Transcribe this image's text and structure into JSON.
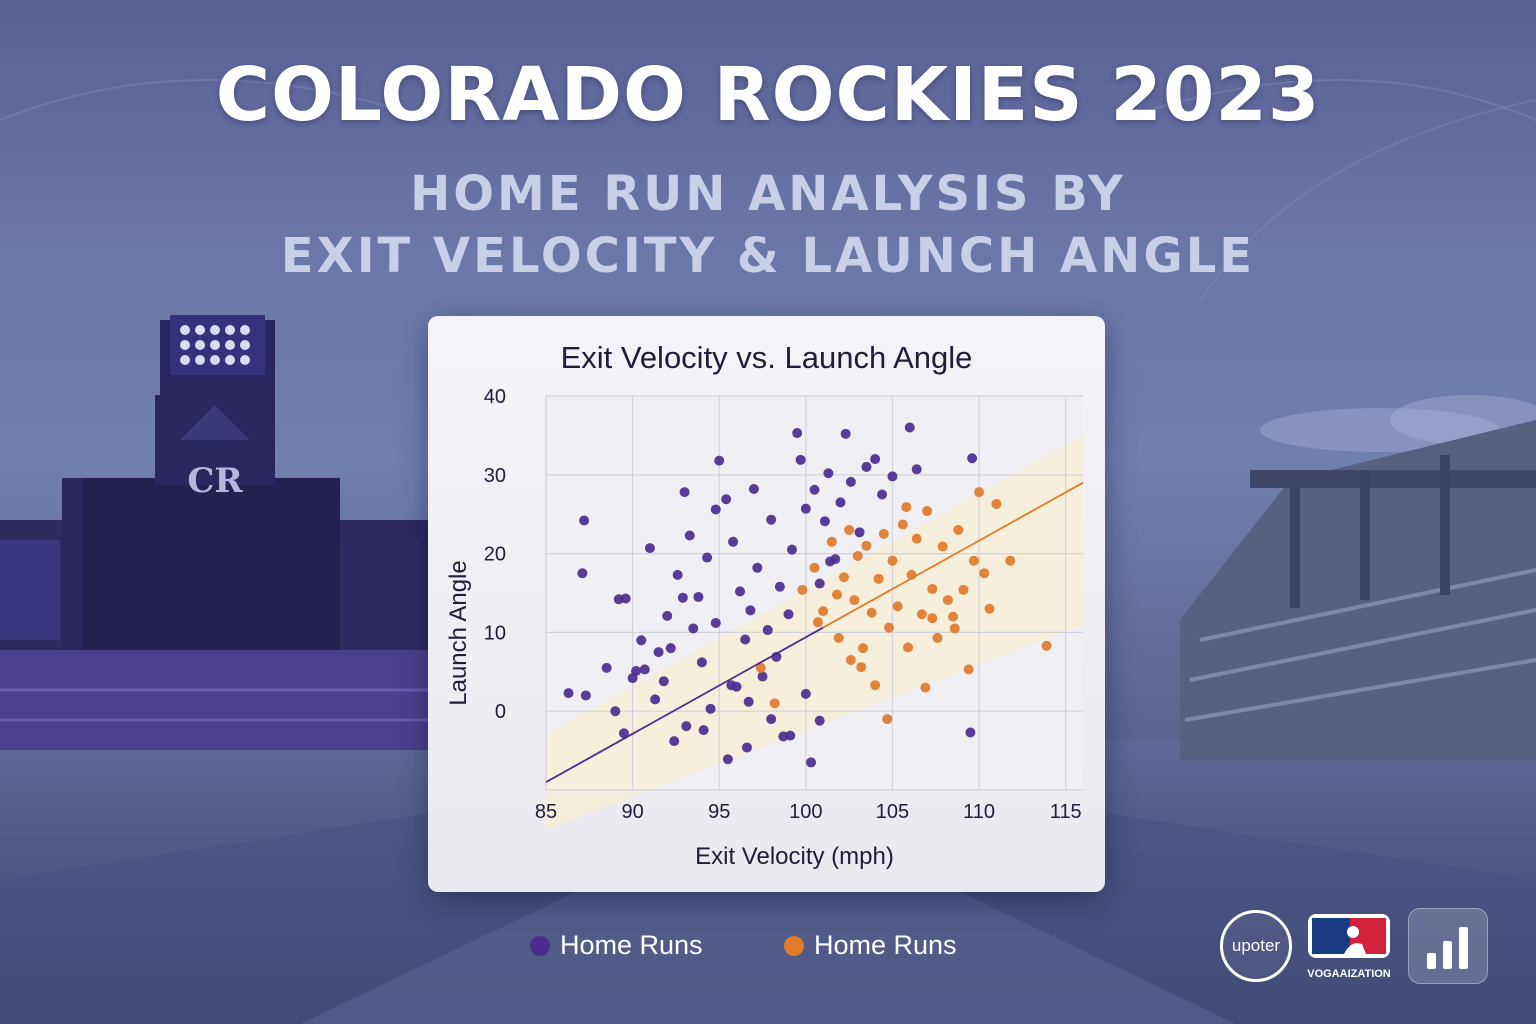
{
  "header": {
    "title": "COLORADO ROCKIES 2023",
    "subtitle_line1": "HOME RUN ANALYSIS BY",
    "subtitle_line2": "EXIT VELOCITY & LAUNCH ANGLE"
  },
  "scoreboard_logo": "CR",
  "colors": {
    "purple_series": "#4b2d8f",
    "orange_series": "#e07a2c",
    "background": "#6a78a8"
  },
  "chart_data": {
    "type": "scatter",
    "title": "Exit Velocity vs. Launch Angle",
    "xlabel": "Exit Velocity (mph)",
    "ylabel": "Launch Angle",
    "xlim": [
      85,
      116
    ],
    "ylim": [
      -10,
      40
    ],
    "xticks": [
      85,
      90,
      95,
      100,
      105,
      110,
      115
    ],
    "yticks": [
      0,
      10,
      20,
      30,
      40
    ],
    "grid": true,
    "legend_position": "bottom",
    "trend_line": {
      "from": [
        85,
        -9
      ],
      "to": [
        116,
        29
      ]
    },
    "series": [
      {
        "name": "Home Runs",
        "color": "#4b2d8f",
        "points": [
          [
            87.2,
            24.2
          ],
          [
            87.1,
            17.5
          ],
          [
            86.3,
            2.3
          ],
          [
            87.3,
            2.0
          ],
          [
            88.5,
            5.5
          ],
          [
            89.2,
            14.2
          ],
          [
            89.6,
            14.3
          ],
          [
            89.0,
            0
          ],
          [
            89.5,
            -2.8
          ],
          [
            90.0,
            4.2
          ],
          [
            90.5,
            9
          ],
          [
            91.0,
            20.7
          ],
          [
            90.2,
            5.1
          ],
          [
            91.5,
            7.5
          ],
          [
            91.8,
            3.8
          ],
          [
            92.0,
            12.1
          ],
          [
            92.4,
            -3.8
          ],
          [
            92.2,
            8.0
          ],
          [
            92.6,
            17.3
          ],
          [
            93.0,
            27.8
          ],
          [
            93.3,
            22.3
          ],
          [
            93.5,
            10.5
          ],
          [
            93.8,
            14.5
          ],
          [
            94.0,
            6.2
          ],
          [
            94.3,
            19.5
          ],
          [
            94.5,
            0.3
          ],
          [
            94.8,
            11.2
          ],
          [
            95.0,
            31.8
          ],
          [
            95.4,
            26.9
          ],
          [
            95.5,
            -6.1
          ],
          [
            95.8,
            21.5
          ],
          [
            96.0,
            3.1
          ],
          [
            96.2,
            15.2
          ],
          [
            96.5,
            9.1
          ],
          [
            96.8,
            12.8
          ],
          [
            97.0,
            28.2
          ],
          [
            97.2,
            18.2
          ],
          [
            97.5,
            4.4
          ],
          [
            97.8,
            10.3
          ],
          [
            98.0,
            24.3
          ],
          [
            98.3,
            6.9
          ],
          [
            98.5,
            15.8
          ],
          [
            98.7,
            -3.2
          ],
          [
            99.0,
            12.3
          ],
          [
            99.2,
            20.5
          ],
          [
            99.5,
            35.3
          ],
          [
            99.7,
            31.9
          ],
          [
            100.0,
            25.7
          ],
          [
            100.3,
            -6.5
          ],
          [
            100.5,
            28.1
          ],
          [
            100.8,
            16.2
          ],
          [
            101.1,
            24.1
          ],
          [
            101.3,
            30.2
          ],
          [
            101.7,
            19.3
          ],
          [
            102.0,
            26.5
          ],
          [
            102.3,
            35.2
          ],
          [
            102.6,
            29.1
          ],
          [
            103.1,
            22.7
          ],
          [
            103.5,
            31.0
          ],
          [
            104.0,
            32.0
          ],
          [
            104.4,
            27.5
          ],
          [
            105.0,
            29.8
          ],
          [
            106.0,
            36.0
          ],
          [
            106.4,
            30.7
          ],
          [
            109.6,
            32.1
          ],
          [
            109.5,
            -2.7
          ],
          [
            100.8,
            -1.2
          ],
          [
            98.0,
            -1.0
          ],
          [
            96.7,
            1.2
          ],
          [
            95.7,
            3.3
          ],
          [
            94.1,
            -2.4
          ],
          [
            93.1,
            -1.9
          ],
          [
            91.3,
            1.5
          ],
          [
            90.7,
            5.3
          ],
          [
            92.9,
            14.4
          ],
          [
            94.8,
            25.6
          ],
          [
            96.6,
            -4.6
          ],
          [
            99.1,
            -3.1
          ],
          [
            100.0,
            2.2
          ],
          [
            101.4,
            19.0
          ]
        ]
      },
      {
        "name": "Home Runs",
        "color": "#e07a2c",
        "points": [
          [
            99.8,
            15.4
          ],
          [
            100.5,
            18.2
          ],
          [
            101.0,
            12.7
          ],
          [
            101.5,
            21.5
          ],
          [
            101.9,
            9.3
          ],
          [
            102.2,
            17.0
          ],
          [
            102.5,
            23.0
          ],
          [
            102.8,
            14.1
          ],
          [
            103.0,
            19.7
          ],
          [
            103.3,
            8.0
          ],
          [
            103.5,
            21.0
          ],
          [
            103.8,
            12.5
          ],
          [
            104.0,
            3.3
          ],
          [
            104.2,
            16.8
          ],
          [
            104.5,
            22.5
          ],
          [
            104.8,
            10.6
          ],
          [
            105.0,
            19.1
          ],
          [
            105.3,
            13.3
          ],
          [
            105.6,
            23.7
          ],
          [
            105.9,
            8.1
          ],
          [
            106.1,
            17.3
          ],
          [
            106.4,
            21.9
          ],
          [
            106.7,
            12.3
          ],
          [
            107.0,
            25.4
          ],
          [
            107.3,
            15.5
          ],
          [
            107.6,
            9.3
          ],
          [
            107.9,
            20.9
          ],
          [
            108.2,
            14.1
          ],
          [
            108.5,
            12.0
          ],
          [
            108.8,
            23.0
          ],
          [
            109.1,
            15.4
          ],
          [
            109.4,
            5.3
          ],
          [
            109.7,
            19.1
          ],
          [
            110.0,
            27.8
          ],
          [
            110.3,
            17.5
          ],
          [
            110.6,
            13.0
          ],
          [
            111.0,
            26.3
          ],
          [
            111.8,
            19.1
          ],
          [
            113.9,
            8.3
          ],
          [
            105.8,
            25.9
          ],
          [
            108.6,
            10.5
          ],
          [
            98.2,
            1.0
          ],
          [
            97.4,
            5.5
          ],
          [
            104.7,
            -1.0
          ],
          [
            103.2,
            5.6
          ],
          [
            102.6,
            6.5
          ],
          [
            106.9,
            3.0
          ],
          [
            107.3,
            11.8
          ],
          [
            101.8,
            14.8
          ],
          [
            100.7,
            11.3
          ]
        ]
      }
    ]
  },
  "legend": [
    {
      "label": "Home Runs",
      "color": "#4b2d8f"
    },
    {
      "label": "Home Runs",
      "color": "#e07a2c"
    }
  ],
  "logos": {
    "left_logo_text": "upoter",
    "mlb_caption": "VOGAAIZATION",
    "stats_icon": "bar-chart-icon"
  }
}
